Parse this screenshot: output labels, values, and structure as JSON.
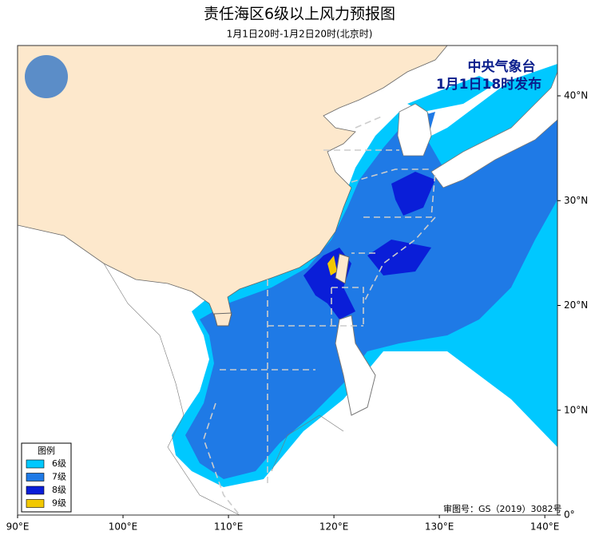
{
  "header": {
    "title": "责任海区6级以上风力预报图",
    "subtitle": "1月1日20时-1月2日20时(北京时)"
  },
  "issuer": {
    "name": "中央气象台",
    "time": "1月1日18时发布"
  },
  "legend": {
    "title": "图例",
    "items": [
      {
        "label": "6级",
        "color": "#00c8ff"
      },
      {
        "label": "7级",
        "color": "#1f7ae6"
      },
      {
        "label": "8级",
        "color": "#0a1ed8"
      },
      {
        "label": "9级",
        "color": "#f2c800"
      }
    ]
  },
  "axes": {
    "lon_range": [
      90,
      141.2
    ],
    "lat_range": [
      0,
      44.8
    ],
    "lon_ticks": [
      {
        "value": 90,
        "label": "90°E"
      },
      {
        "value": 100,
        "label": "100°E"
      },
      {
        "value": 110,
        "label": "110°E"
      },
      {
        "value": 120,
        "label": "120°E"
      },
      {
        "value": 130,
        "label": "130°E"
      },
      {
        "value": 140,
        "label": "140°E"
      }
    ],
    "lat_ticks": [
      {
        "value": 0,
        "label": "0°"
      },
      {
        "value": 10,
        "label": "10°N"
      },
      {
        "value": 20,
        "label": "20°N"
      },
      {
        "value": 30,
        "label": "30°N"
      },
      {
        "value": 40,
        "label": "40°N"
      }
    ]
  },
  "approval": "审图号：GS（2019）3082号"
}
